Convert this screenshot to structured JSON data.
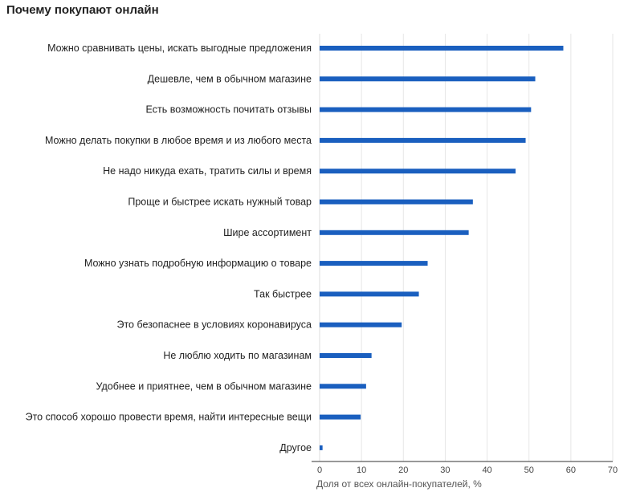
{
  "chart_data": {
    "type": "bar",
    "orientation": "horizontal",
    "title": "Почему покупают онлайн",
    "xlabel": "Доля от всех онлайн-покупателей, %",
    "ylabel": "",
    "xlim": [
      0,
      70
    ],
    "xticks": [
      0,
      10,
      20,
      30,
      40,
      50,
      60,
      70
    ],
    "grid": true,
    "legend": "none",
    "bar_color": "#1a5fbf",
    "categories": [
      "Можно сравнивать цены, искать выгодные предложения",
      "Дешевле, чем в обычном магазине",
      "Есть возможность почитать отзывы",
      "Можно делать покупки в любое время и из любого места",
      "Не надо никуда ехать, тратить силы и время",
      "Проще и быстрее искать нужный товар",
      "Шире ассортимент",
      "Можно узнать подробную информацию о товаре",
      "Так быстрее",
      "Это безопаснее в условиях коронавируса",
      "Не люблю ходить по магазинам",
      "Удобнее и приятнее, чем в обычном магазине",
      "Это способ хорошо провести время, найти интересные вещи",
      "Другое"
    ],
    "values": [
      58.2,
      51.5,
      50.5,
      49.2,
      46.8,
      36.6,
      35.6,
      25.8,
      23.7,
      19.6,
      12.4,
      11.1,
      9.8,
      0.7
    ]
  }
}
